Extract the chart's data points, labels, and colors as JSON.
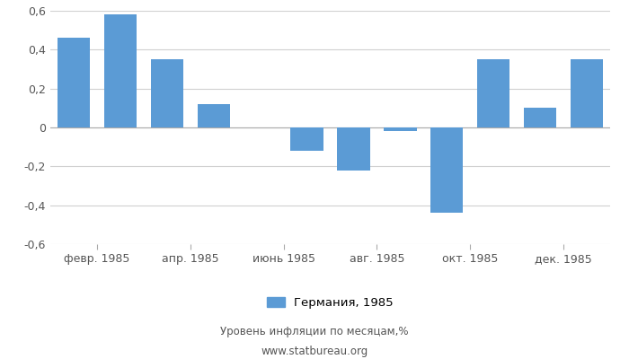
{
  "months": [
    1,
    2,
    3,
    4,
    5,
    6,
    7,
    8,
    9,
    10,
    11,
    12
  ],
  "values": [
    0.46,
    0.58,
    0.35,
    0.12,
    0.0,
    -0.12,
    -0.22,
    -0.02,
    -0.44,
    0.35,
    0.1,
    0.35
  ],
  "bar_color": "#5B9BD5",
  "tick_positions": [
    1.5,
    3.5,
    5.5,
    7.5,
    9.5,
    11.5
  ],
  "tick_labels": [
    "февр. 1985",
    "апр. 1985",
    "июнь 1985",
    "авг. 1985",
    "окт. 1985",
    "дек. 1985"
  ],
  "ylim": [
    -0.6,
    0.6
  ],
  "yticks": [
    -0.6,
    -0.4,
    -0.2,
    0.0,
    0.2,
    0.4,
    0.6
  ],
  "ytick_labels": [
    "-0,6",
    "-0,4",
    "-0,2",
    "0",
    "0,2",
    "0,4",
    "0,6"
  ],
  "legend_label": "Германия, 1985",
  "footer_line1": "Уровень инфляции по месяцам,%",
  "footer_line2": "www.statbureau.org",
  "background_color": "#ffffff",
  "grid_color": "#d0d0d0",
  "xlim": [
    0.5,
    12.5
  ]
}
